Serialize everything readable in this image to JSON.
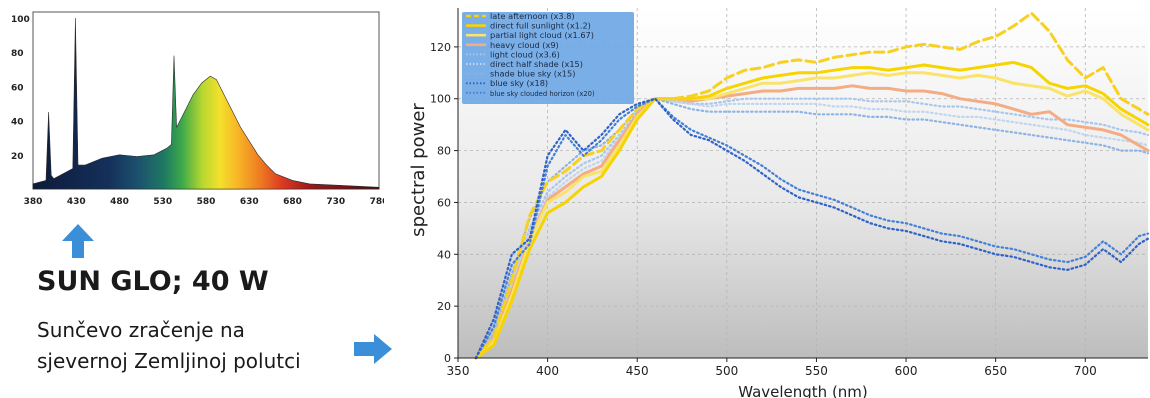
{
  "colors": {
    "arrow": "#3a8fd8",
    "right_series_blue": "#3a6fd0",
    "right_series_yellow": "#f5d400",
    "right_series_orange": "#f0a070"
  },
  "left_panel": {
    "title": "SUN GLO; 40 W",
    "caption_line1": "Sunčevo zračenje na",
    "caption_line2": "sjevernoj Zemljinoj polutci",
    "up_arrow_icon": "arrow-up-icon",
    "right_arrow_icon": "arrow-right-icon"
  },
  "chart_data": [
    {
      "type": "area",
      "title": "",
      "xlabel": "",
      "ylabel": "",
      "xlim": [
        380,
        780
      ],
      "ylim": [
        0,
        100
      ],
      "x_ticks": [
        "380",
        "430",
        "480",
        "530",
        "580",
        "630",
        "680",
        "730",
        "780"
      ],
      "y_ticks": [
        "20",
        "40",
        "60",
        "80",
        "100"
      ],
      "grid": false,
      "fill": "visible-spectrum gradient",
      "x": [
        380,
        395,
        398,
        401,
        404,
        415,
        426,
        429,
        432,
        440,
        460,
        480,
        500,
        520,
        535,
        540,
        543,
        546,
        555,
        565,
        575,
        585,
        592,
        600,
        610,
        620,
        630,
        640,
        650,
        660,
        680,
        700,
        740,
        780
      ],
      "values": [
        3,
        5,
        45,
        8,
        6,
        9,
        12,
        100,
        14,
        14,
        18,
        20,
        19,
        20,
        24,
        26,
        78,
        36,
        45,
        55,
        62,
        66,
        64,
        56,
        46,
        36,
        28,
        20,
        14,
        9,
        5,
        3,
        2,
        1
      ]
    },
    {
      "type": "line",
      "title": "",
      "xlabel": "Wavelength (nm)",
      "ylabel": "spectral power",
      "xlim": [
        350,
        735
      ],
      "ylim": [
        0,
        135
      ],
      "x_ticks": [
        "350",
        "400",
        "450",
        "500",
        "550",
        "600",
        "650",
        "700"
      ],
      "y_ticks": [
        "0",
        "20",
        "40",
        "60",
        "80",
        "100",
        "120"
      ],
      "grid": true,
      "legend_position": "top-left",
      "x": [
        360,
        370,
        380,
        390,
        400,
        410,
        420,
        430,
        440,
        450,
        460,
        470,
        480,
        490,
        500,
        510,
        520,
        530,
        540,
        550,
        560,
        570,
        580,
        590,
        600,
        610,
        620,
        630,
        640,
        650,
        660,
        670,
        680,
        690,
        700,
        710,
        720,
        730,
        735
      ],
      "series": [
        {
          "name": "late afternoon (x3.8)",
          "style": "dashed",
          "color": "#f7d020",
          "values": [
            0,
            8,
            30,
            55,
            68,
            72,
            78,
            80,
            88,
            96,
            100,
            100,
            101,
            103,
            108,
            111,
            112,
            114,
            115,
            114,
            116,
            117,
            118,
            118,
            120,
            121,
            120,
            119,
            122,
            124,
            128,
            133,
            126,
            115,
            108,
            112,
            100,
            96,
            94
          ]
        },
        {
          "name": "direct full sunlight (x1.2)",
          "style": "solid",
          "color": "#f5d400",
          "values": [
            0,
            5,
            22,
            42,
            56,
            60,
            66,
            70,
            80,
            92,
            100,
            100,
            100,
            101,
            104,
            106,
            108,
            109,
            110,
            110,
            111,
            112,
            112,
            111,
            112,
            113,
            112,
            111,
            112,
            113,
            114,
            112,
            106,
            104,
            105,
            102,
            96,
            92,
            90
          ]
        },
        {
          "name": "partial light cloud (x1.67)",
          "style": "solid",
          "color": "#f9e36a",
          "values": [
            0,
            6,
            24,
            45,
            60,
            64,
            70,
            72,
            82,
            93,
            100,
            100,
            100,
            100,
            102,
            104,
            106,
            106,
            107,
            108,
            108,
            109,
            110,
            109,
            110,
            110,
            109,
            108,
            109,
            108,
            106,
            105,
            104,
            101,
            103,
            100,
            94,
            90,
            88
          ]
        },
        {
          "name": "heavy cloud (x9)",
          "style": "solid",
          "color": "#f3ac84",
          "values": [
            0,
            7,
            26,
            46,
            61,
            66,
            71,
            74,
            84,
            94,
            100,
            100,
            99,
            100,
            101,
            102,
            103,
            103,
            104,
            104,
            104,
            105,
            104,
            104,
            103,
            103,
            102,
            100,
            99,
            98,
            96,
            94,
            95,
            90,
            89,
            88,
            86,
            82,
            80
          ]
        },
        {
          "name": "light cloud (x3.6)",
          "style": "dotted",
          "color": "#a9c6ec",
          "values": [
            0,
            8,
            28,
            50,
            64,
            70,
            75,
            78,
            86,
            95,
            100,
            99,
            98,
            98,
            99,
            100,
            100,
            100,
            100,
            100,
            100,
            100,
            99,
            99,
            99,
            98,
            97,
            97,
            96,
            95,
            94,
            93,
            92,
            92,
            91,
            90,
            88,
            87,
            86
          ]
        },
        {
          "name": "direct half shade (x15)",
          "style": "dotted",
          "color": "#c0d5ee",
          "values": [
            0,
            8,
            28,
            48,
            62,
            68,
            73,
            76,
            85,
            94,
            100,
            99,
            98,
            97,
            98,
            98,
            98,
            98,
            98,
            98,
            97,
            97,
            96,
            96,
            95,
            95,
            94,
            93,
            93,
            92,
            91,
            90,
            89,
            88,
            86,
            85,
            84,
            83,
            82
          ]
        },
        {
          "name": "shade blue sky (x15)",
          "style": "dotted",
          "color": "#8db4e6",
          "values": [
            0,
            9,
            32,
            54,
            68,
            74,
            80,
            82,
            88,
            96,
            100,
            98,
            96,
            95,
            95,
            95,
            95,
            95,
            95,
            94,
            94,
            94,
            93,
            93,
            92,
            92,
            91,
            90,
            89,
            88,
            87,
            86,
            85,
            84,
            83,
            82,
            80,
            80,
            79
          ]
        },
        {
          "name": "blue sky (x18)",
          "style": "dotted",
          "color": "#2f62c8",
          "values": [
            0,
            15,
            40,
            46,
            78,
            88,
            80,
            86,
            94,
            98,
            100,
            92,
            86,
            84,
            80,
            76,
            71,
            66,
            62,
            60,
            58,
            55,
            52,
            50,
            49,
            47,
            45,
            44,
            42,
            40,
            39,
            37,
            35,
            34,
            36,
            42,
            37,
            44,
            46
          ]
        },
        {
          "name": "blue sky clouded horizon (x20)",
          "style": "dotted",
          "color": "#4580d8",
          "values": [
            0,
            12,
            36,
            44,
            74,
            86,
            78,
            84,
            92,
            97,
            100,
            93,
            88,
            85,
            82,
            78,
            74,
            69,
            65,
            63,
            61,
            58,
            55,
            53,
            52,
            50,
            48,
            47,
            45,
            43,
            42,
            40,
            38,
            37,
            39,
            45,
            40,
            47,
            48
          ]
        }
      ]
    }
  ]
}
